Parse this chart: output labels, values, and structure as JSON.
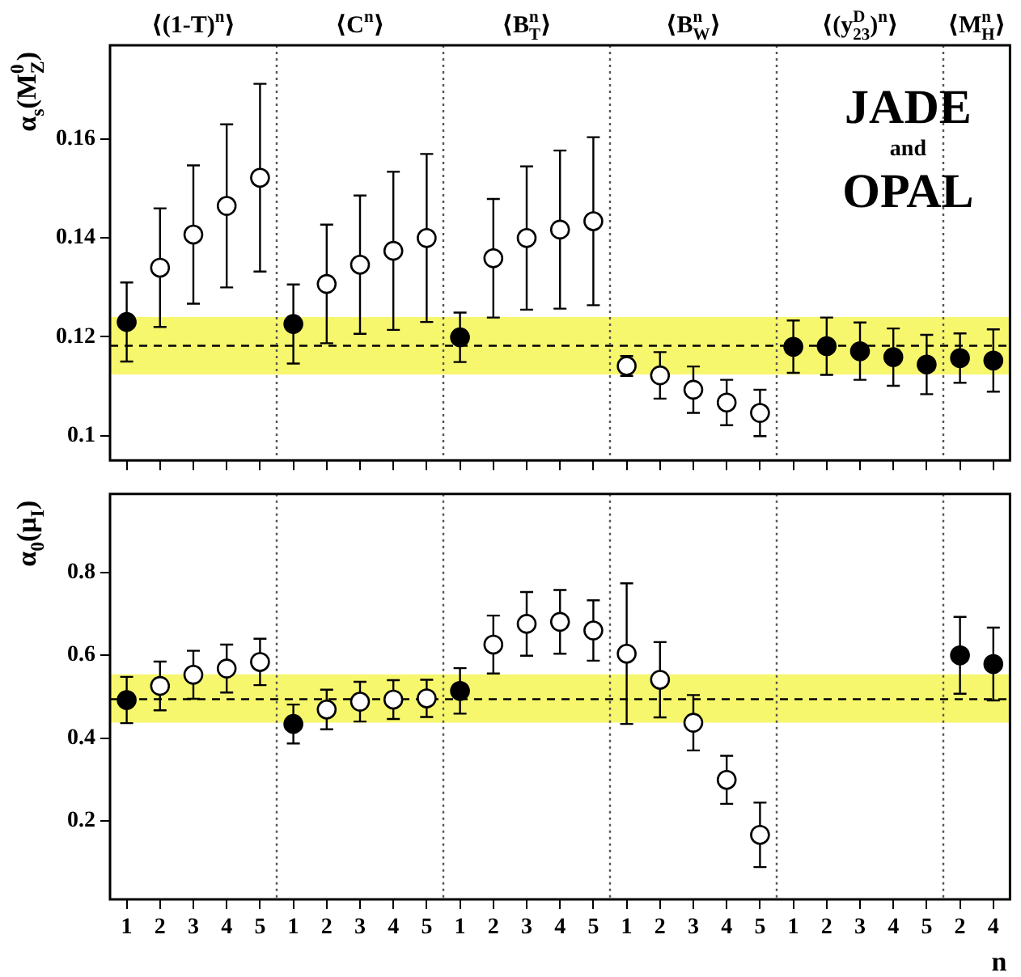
{
  "chart_data": [
    {
      "type": "scatter",
      "ylabel": "α$_{s}$(M$_{Z}$$^{0}$)",
      "marker": "circle",
      "tick_labels": "y",
      "categories": [
        "1",
        "2",
        "3",
        "4",
        "5",
        "1",
        "2",
        "3",
        "4",
        "5",
        "1",
        "2",
        "3",
        "4",
        "5",
        "1",
        "2",
        "3",
        "4",
        "5",
        "1",
        "2",
        "3",
        "4",
        "5",
        "2",
        "4"
      ],
      "ylim": [
        0.095,
        0.179
      ],
      "yticks": [
        0.1,
        0.12,
        0.14,
        0.16
      ],
      "series": [
        {
          "color": "#000000",
          "values": [
            0.123,
            null,
            null,
            null,
            null,
            0.1226,
            null,
            null,
            null,
            null,
            0.1199,
            null,
            null,
            null,
            null,
            null,
            null,
            null,
            null,
            null,
            0.118,
            0.1181,
            0.1171,
            0.1159,
            0.1144,
            0.1157,
            0.1152
          ],
          "errors": [
            0.008,
            null,
            null,
            null,
            null,
            0.008,
            null,
            null,
            null,
            null,
            0.005,
            null,
            null,
            null,
            null,
            null,
            null,
            null,
            null,
            null,
            0.0053,
            0.0058,
            0.0058,
            0.0058,
            0.006,
            0.005,
            0.0063
          ]
        },
        {
          "color": "#ffffff",
          "values": [
            null,
            0.134,
            0.1407,
            0.1465,
            0.1522,
            null,
            0.1307,
            0.1346,
            0.1374,
            0.14,
            null,
            0.1359,
            0.14,
            0.1417,
            0.1434,
            0.1141,
            0.1122,
            0.1093,
            0.1067,
            0.1046,
            null,
            null,
            null,
            null,
            null,
            null,
            null
          ],
          "errors": [
            null,
            0.012,
            0.014,
            0.0165,
            0.019,
            null,
            0.012,
            0.014,
            0.016,
            0.017,
            null,
            0.012,
            0.0145,
            0.016,
            0.017,
            0.002,
            0.0047,
            0.0047,
            0.0046,
            0.0047,
            null,
            null,
            null,
            null,
            null,
            null,
            null
          ]
        }
      ],
      "bands": [
        {
          "axis": "y",
          "from": 0.1124,
          "to": 0.124,
          "color": "#f7f76e"
        }
      ],
      "ref_lines": [
        {
          "axis": "y",
          "value": 0.1182,
          "line_style": "dashed",
          "color": "#000000"
        }
      ],
      "annotations": [
        "⟨(1-T)$^{n}$⟩",
        "⟨C$^{n}$⟩",
        "⟨B$_{T}$$^{n}$⟩",
        "⟨B$_{W}$$^{n}$⟩",
        "⟨(y$_{23}$$^{D}$)$^{n}$⟩",
        "⟨M$_{H}$$^{n}$⟩",
        "JADE",
        "and",
        "OPAL"
      ]
    },
    {
      "type": "scatter",
      "ylabel": "α$_{0}$(μ$_{I}$)",
      "xlabel": "n",
      "marker": "circle",
      "categories": [
        "1",
        "2",
        "3",
        "4",
        "5",
        "1",
        "2",
        "3",
        "4",
        "5",
        "1",
        "2",
        "3",
        "4",
        "5",
        "1",
        "2",
        "3",
        "4",
        "5",
        "1",
        "2",
        "3",
        "4",
        "5",
        "2",
        "4"
      ],
      "ylim": [
        0.01,
        0.99
      ],
      "yticks": [
        0.2,
        0.4,
        0.6,
        0.8
      ],
      "series": [
        {
          "color": "#000000",
          "values": [
            0.492,
            null,
            null,
            null,
            null,
            0.434,
            null,
            null,
            null,
            null,
            0.514,
            null,
            null,
            null,
            null,
            null,
            null,
            null,
            null,
            null,
            null,
            null,
            null,
            null,
            null,
            0.6,
            0.579
          ],
          "errors": [
            0.056,
            null,
            null,
            null,
            null,
            0.047,
            null,
            null,
            null,
            null,
            0.055,
            null,
            null,
            null,
            null,
            null,
            null,
            null,
            null,
            null,
            null,
            null,
            null,
            null,
            null,
            0.093,
            0.088
          ]
        },
        {
          "color": "#ffffff",
          "values": [
            null,
            0.526,
            0.553,
            0.568,
            0.584,
            null,
            0.469,
            0.488,
            0.493,
            0.496,
            null,
            0.626,
            0.676,
            0.681,
            0.66,
            0.604,
            0.541,
            0.437,
            0.299,
            0.166,
            null,
            null,
            null,
            null,
            null,
            null,
            null
          ],
          "errors": [
            null,
            0.059,
            0.058,
            0.058,
            0.056,
            null,
            0.048,
            0.048,
            0.047,
            0.045,
            null,
            0.07,
            0.077,
            0.077,
            0.073,
            0.17,
            0.091,
            0.067,
            0.058,
            0.078,
            null,
            null,
            null,
            null,
            null,
            null,
            null
          ]
        }
      ],
      "bands": [
        {
          "axis": "y",
          "from": 0.437,
          "to": 0.554,
          "color": "#f7f76e"
        }
      ],
      "ref_lines": [
        {
          "axis": "y",
          "value": 0.494,
          "line_style": "dashed",
          "color": "#000000"
        }
      ]
    }
  ]
}
